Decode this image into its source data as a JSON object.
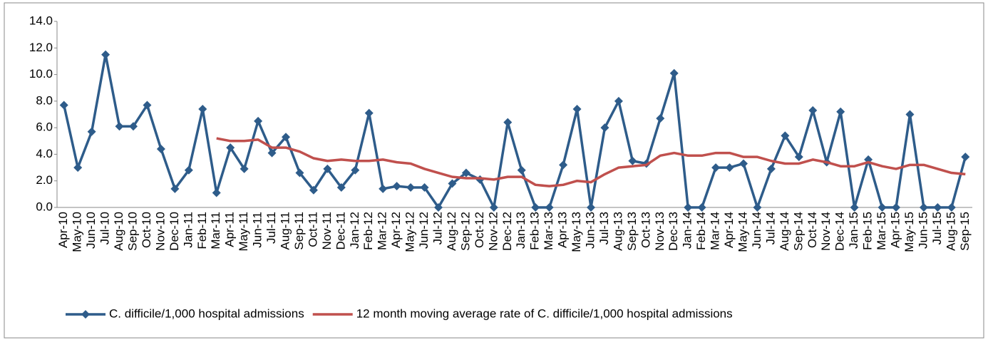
{
  "chart_data": {
    "type": "line",
    "categories": [
      "Apr-10",
      "May-10",
      "Jun-10",
      "Jul-10",
      "Aug-10",
      "Sep-10",
      "Oct-10",
      "Nov-10",
      "Dec-10",
      "Jan-11",
      "Feb-11",
      "Mar-11",
      "Apr-11",
      "May-11",
      "Jun-11",
      "Jul-11",
      "Aug-11",
      "Sep-11",
      "Oct-11",
      "Nov-11",
      "Dec-11",
      "Jan-12",
      "Feb-12",
      "Mar-12",
      "Apr-12",
      "May-12",
      "Jun-12",
      "Jul-12",
      "Aug-12",
      "Sep-12",
      "Oct-12",
      "Nov-12",
      "Dec-12",
      "Jan-13",
      "Feb-13",
      "Mar-13",
      "Apr-13",
      "May-13",
      "Jun-13",
      "Jul-13",
      "Aug-13",
      "Sep-13",
      "Oct-13",
      "Nov-13",
      "Dec-13",
      "Jan-14",
      "Feb-14",
      "Mar-14",
      "Apr-14",
      "May-14",
      "Jun-14",
      "Jul-14",
      "Aug-14",
      "Sep-14",
      "Oct-14",
      "Nov-14",
      "Dec-14",
      "Jan-15",
      "Feb-15",
      "Mar-15",
      "Apr-15",
      "May-15",
      "Jun-15",
      "Jul-15",
      "Aug-15",
      "Sep-15"
    ],
    "series": [
      {
        "name": "C. difficile/1,000 hospital admissions",
        "color": "#2E5C8A",
        "marker": "diamond",
        "values": [
          7.7,
          3.0,
          5.7,
          11.5,
          6.1,
          6.1,
          7.7,
          4.4,
          1.4,
          2.8,
          7.4,
          1.1,
          4.5,
          2.9,
          6.5,
          4.1,
          5.3,
          2.6,
          1.3,
          2.9,
          1.5,
          2.8,
          7.1,
          1.4,
          1.6,
          1.5,
          1.5,
          0,
          1.8,
          2.6,
          2.1,
          0,
          6.4,
          2.8,
          0,
          0,
          3.2,
          7.4,
          0,
          6.0,
          8.0,
          3.5,
          3.3,
          6.7,
          10.1,
          0,
          0,
          3.0,
          3.0,
          3.3,
          0,
          2.9,
          5.4,
          3.8,
          7.3,
          3.4,
          7.2,
          0,
          3.6,
          0,
          0,
          7.0,
          0,
          0,
          0,
          3.8
        ]
      },
      {
        "name": "12 month moving average rate of C. difficile/1,000 hospital admissions",
        "color": "#C0504D",
        "values": [
          null,
          null,
          null,
          null,
          null,
          null,
          null,
          null,
          null,
          null,
          null,
          5.2,
          5.0,
          5.0,
          5.1,
          4.5,
          4.5,
          4.2,
          3.7,
          3.5,
          3.6,
          3.5,
          3.5,
          3.6,
          3.4,
          3.3,
          2.9,
          2.6,
          2.3,
          2.2,
          2.2,
          2.1,
          2.3,
          2.3,
          1.7,
          1.6,
          1.7,
          2.0,
          1.9,
          2.5,
          3.0,
          3.1,
          3.2,
          3.9,
          4.1,
          3.9,
          3.9,
          4.1,
          4.1,
          3.8,
          3.8,
          3.5,
          3.3,
          3.3,
          3.6,
          3.4,
          3.1,
          3.1,
          3.4,
          3.1,
          2.9,
          3.2,
          3.2,
          2.9,
          2.6,
          2.5
        ]
      }
    ],
    "ylim": [
      0,
      14
    ],
    "yticks": [
      {
        "value": 0,
        "label": "0.0"
      },
      {
        "value": 2,
        "label": "2.0"
      },
      {
        "value": 4,
        "label": "4.0"
      },
      {
        "value": 6,
        "label": "6.0"
      },
      {
        "value": 8,
        "label": "8.0"
      },
      {
        "value": 10,
        "label": "10.0"
      },
      {
        "value": 12,
        "label": "12.0"
      },
      {
        "value": 14,
        "label": "14.0"
      }
    ],
    "legend": "bottom"
  }
}
